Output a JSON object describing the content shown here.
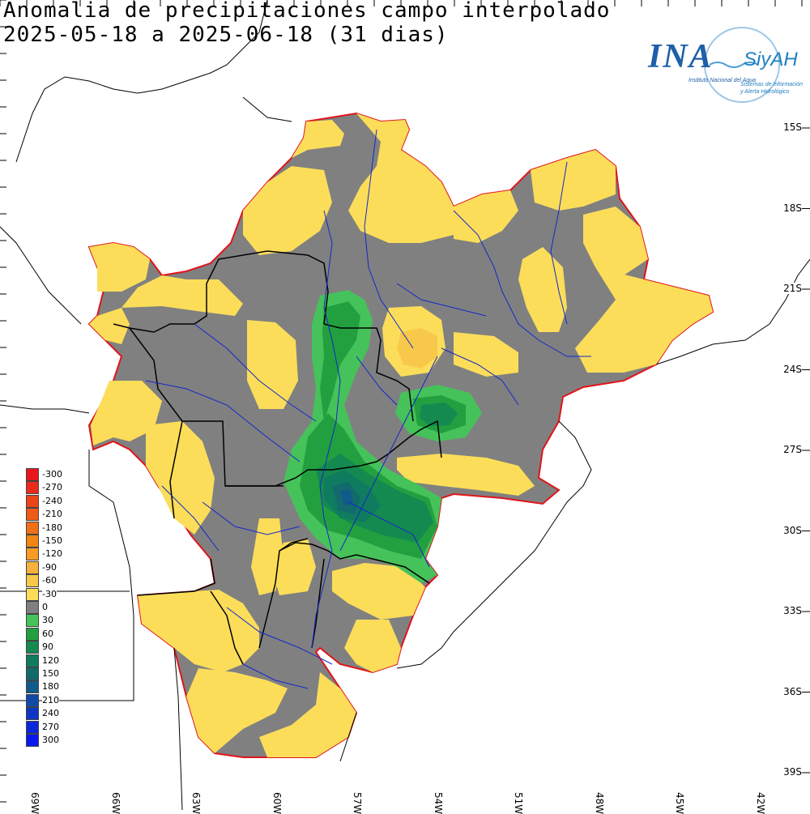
{
  "title_line1": "Anomalia de precipitaciones campo interpolado",
  "title_line2": "2025-05-18 a 2025-06-18 (31 dias)",
  "logo": {
    "name": "INA",
    "siyah": "SiyAH",
    "subtitle": "Instituto Nacional del Agua",
    "subtitle2": "Sistemas de Información y Alerta Hidrológico"
  },
  "lat_labels": [
    "15S",
    "18S",
    "21S",
    "24S",
    "27S",
    "30S",
    "33S",
    "36S",
    "39S"
  ],
  "lon_labels": [
    "69W",
    "66W",
    "63W",
    "60W",
    "57W",
    "54W",
    "51W",
    "48W",
    "45W",
    "42W"
  ],
  "legend": [
    {
      "label": "-300",
      "color": "#e8161b"
    },
    {
      "label": "-270",
      "color": "#ea2b19"
    },
    {
      "label": "-240",
      "color": "#ed4318"
    },
    {
      "label": "-210",
      "color": "#ef5a17"
    },
    {
      "label": "-180",
      "color": "#f17015"
    },
    {
      "label": "-150",
      "color": "#f38613"
    },
    {
      "label": "-120",
      "color": "#f59b26"
    },
    {
      "label": "-90",
      "color": "#f6b23a"
    },
    {
      "label": "-60",
      "color": "#f8c84a"
    },
    {
      "label": "-30",
      "color": "#fbdd5a"
    },
    {
      "label": "0",
      "color": "#808080"
    },
    {
      "label": "30",
      "color": "#46c25a"
    },
    {
      "label": "60",
      "color": "#22a040"
    },
    {
      "label": "90",
      "color": "#148a50"
    },
    {
      "label": "120",
      "color": "#0f7b5f"
    },
    {
      "label": "150",
      "color": "#126a6d"
    },
    {
      "label": "180",
      "color": "#115b8a"
    },
    {
      "label": "210",
      "color": "#0f4aa8"
    },
    {
      "label": "240",
      "color": "#0d36c4"
    },
    {
      "label": "270",
      "color": "#0c26dc"
    },
    {
      "label": "300",
      "color": "#0a18f0"
    }
  ]
}
